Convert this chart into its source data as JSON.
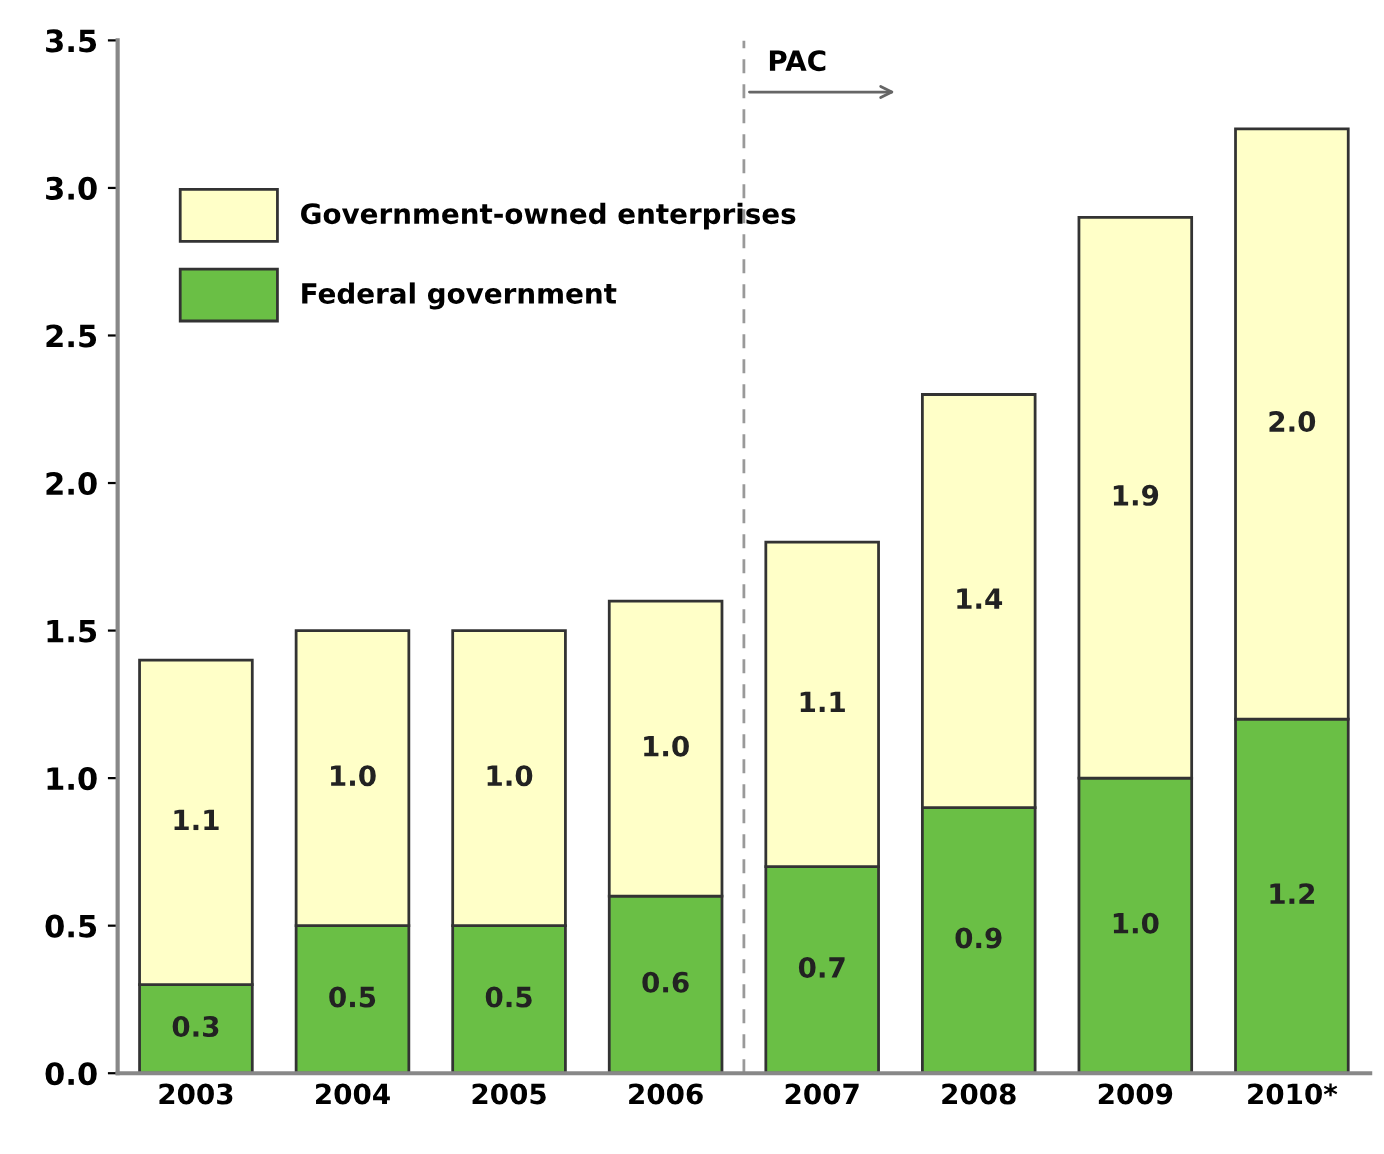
{
  "chart_data": {
    "type": "bar",
    "stacked": true,
    "categories": [
      "2003",
      "2004",
      "2005",
      "2006",
      "2007",
      "2008",
      "2009",
      "2010*"
    ],
    "series": [
      {
        "name": "Federal government",
        "color": "#6abf45",
        "values": [
          0.3,
          0.5,
          0.5,
          0.6,
          0.7,
          0.9,
          1.0,
          1.2
        ],
        "value_labels": [
          "0.3",
          "0.5",
          "0.5",
          "0.6",
          "0.7",
          "0.9",
          "1.0",
          "1.2"
        ]
      },
      {
        "name": "Government-owned enterprises",
        "color": "#ffffc8",
        "values": [
          1.1,
          1.0,
          1.0,
          1.0,
          1.1,
          1.4,
          1.9,
          2.0
        ],
        "value_labels": [
          "1.1",
          "1.0",
          "1.0",
          "1.0",
          "1.1",
          "1.4",
          "1.9",
          "2.0"
        ]
      }
    ],
    "ylim": [
      0,
      3.5
    ],
    "yticks": [
      {
        "value": 0,
        "label": "0.0"
      },
      {
        "value": 0.5,
        "label": "0.5"
      },
      {
        "value": 1,
        "label": "1.0"
      },
      {
        "value": 1.5,
        "label": "1.5"
      },
      {
        "value": 2,
        "label": "2.0"
      },
      {
        "value": 2.5,
        "label": "2.5"
      },
      {
        "value": 3,
        "label": "3.0"
      },
      {
        "value": 3.5,
        "label": "3.5"
      }
    ],
    "grid": false,
    "legend": "top left",
    "annotations": [
      "PAC"
    ]
  }
}
